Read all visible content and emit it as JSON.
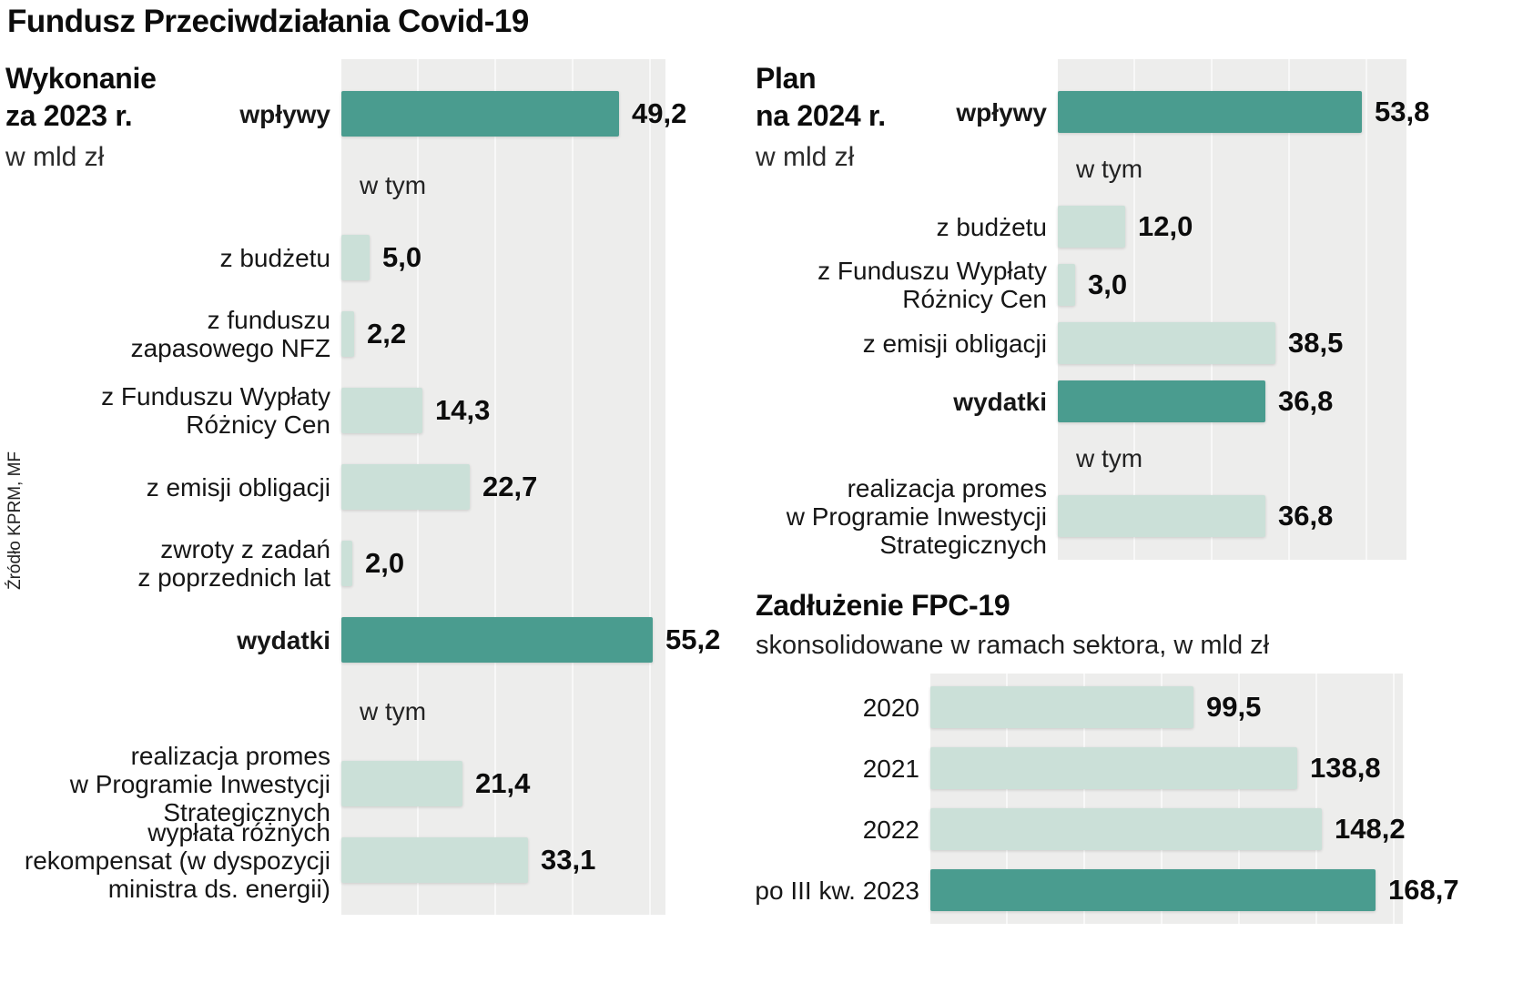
{
  "title": "Fundusz Przeciwdziałania Covid-19",
  "source": "Źródło KPRM, MF",
  "colors": {
    "dark": "#4a9c8f",
    "light": "#cbe0d8",
    "panel": "#ededec",
    "gridline": "#f8f8f8"
  },
  "chart_data": [
    {
      "type": "bar",
      "title_lines": [
        "Wykonanie",
        "za 2023 r."
      ],
      "unit": "w mld zł",
      "xlim": [
        0,
        57
      ],
      "legend": "none",
      "rows": [
        {
          "kind": "bar",
          "label_lines": [
            "wpływy"
          ],
          "label_bold": true,
          "value": 49.2,
          "value_label": "49,2",
          "color": "dark"
        },
        {
          "kind": "subheader",
          "label": "w tym"
        },
        {
          "kind": "bar",
          "label_lines": [
            "z budżetu"
          ],
          "label_bold": false,
          "value": 5.0,
          "value_label": "5,0",
          "color": "light"
        },
        {
          "kind": "bar",
          "label_lines": [
            "z funduszu",
            "zapasowego NFZ"
          ],
          "label_bold": false,
          "value": 2.2,
          "value_label": "2,2",
          "color": "light"
        },
        {
          "kind": "bar",
          "label_lines": [
            "z Funduszu Wypłaty",
            "Różnicy Cen"
          ],
          "label_bold": false,
          "value": 14.3,
          "value_label": "14,3",
          "color": "light"
        },
        {
          "kind": "bar",
          "label_lines": [
            "z emisji obligacji"
          ],
          "label_bold": false,
          "value": 22.7,
          "value_label": "22,7",
          "color": "light"
        },
        {
          "kind": "bar",
          "label_lines": [
            "zwroty z zadań",
            "z poprzednich lat"
          ],
          "label_bold": false,
          "value": 2.0,
          "value_label": "2,0",
          "color": "light"
        },
        {
          "kind": "bar",
          "label_lines": [
            "wydatki"
          ],
          "label_bold": true,
          "value": 55.2,
          "value_label": "55,2",
          "color": "dark"
        },
        {
          "kind": "subheader",
          "label": "w tym"
        },
        {
          "kind": "bar",
          "label_lines": [
            "realizacja promes",
            "w Programie Inwestycji",
            "Strategicznych"
          ],
          "label_bold": false,
          "value": 21.4,
          "value_label": "21,4",
          "color": "light"
        },
        {
          "kind": "bar",
          "label_lines": [
            "wypłata różnych",
            "rekompensat (w dyspozycji",
            "ministra ds. energii)"
          ],
          "label_bold": false,
          "value": 33.1,
          "value_label": "33,1",
          "color": "light"
        }
      ]
    },
    {
      "type": "bar",
      "title_lines": [
        "Plan",
        "na 2024 r."
      ],
      "unit": "w mld zł",
      "xlim": [
        0,
        57
      ],
      "legend": "none",
      "rows": [
        {
          "kind": "bar",
          "label_lines": [
            "wpływy"
          ],
          "label_bold": true,
          "value": 53.8,
          "value_label": "53,8",
          "color": "dark"
        },
        {
          "kind": "subheader",
          "label": "w tym"
        },
        {
          "kind": "bar",
          "label_lines": [
            "z budżetu"
          ],
          "label_bold": false,
          "value": 12.0,
          "value_label": "12,0",
          "color": "light"
        },
        {
          "kind": "bar",
          "label_lines": [
            "z Funduszu Wypłaty",
            "Różnicy Cen"
          ],
          "label_bold": false,
          "value": 3.0,
          "value_label": "3,0",
          "color": "light"
        },
        {
          "kind": "bar",
          "label_lines": [
            "z emisji obligacji"
          ],
          "label_bold": false,
          "value": 38.5,
          "value_label": "38,5",
          "color": "light"
        },
        {
          "kind": "bar",
          "label_lines": [
            "wydatki"
          ],
          "label_bold": true,
          "value": 36.8,
          "value_label": "36,8",
          "color": "dark"
        },
        {
          "kind": "subheader",
          "label": "w tym"
        },
        {
          "kind": "bar",
          "label_lines": [
            "realizacja promes",
            "w Programie Inwestycji",
            "Strategicznych"
          ],
          "label_bold": false,
          "value": 36.8,
          "value_label": "36,8",
          "color": "light"
        }
      ]
    },
    {
      "type": "bar",
      "title": "Zadłużenie FPC-19",
      "subtitle": "skonsolidowane w ramach sektora, w mld zł",
      "xlim": [
        0,
        180
      ],
      "legend": "none",
      "rows": [
        {
          "kind": "bar",
          "label_lines": [
            "2020"
          ],
          "label_bold": false,
          "value": 99.5,
          "value_label": "99,5",
          "color": "light"
        },
        {
          "kind": "bar",
          "label_lines": [
            "2021"
          ],
          "label_bold": false,
          "value": 138.8,
          "value_label": "138,8",
          "color": "light"
        },
        {
          "kind": "bar",
          "label_lines": [
            "2022"
          ],
          "label_bold": false,
          "value": 148.2,
          "value_label": "148,2",
          "color": "light"
        },
        {
          "kind": "bar",
          "label_lines": [
            "po III kw. 2023"
          ],
          "label_bold": false,
          "value": 168.7,
          "value_label": "168,7",
          "color": "dark"
        }
      ]
    }
  ]
}
